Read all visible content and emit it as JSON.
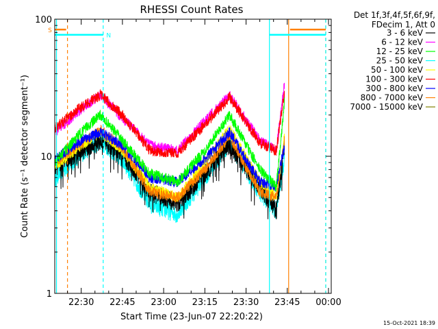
{
  "chart_data": {
    "type": "line",
    "title": "RHESSI Count Rates",
    "xlabel": "Start Time (23-Jun-07 22:20:22)",
    "ylabel": "Count Rate (s⁻¹ detector segment⁻¹)",
    "y_scale": "log",
    "ylim": [
      1,
      100
    ],
    "xlim": [
      "22:20:22",
      "00:01:00"
    ],
    "x_tick_labels": [
      "22:30",
      "22:45",
      "23:00",
      "23:15",
      "23:30",
      "23:45",
      "00:00"
    ],
    "y_tick_labels": [
      "1",
      "10",
      "100"
    ],
    "legend_header": [
      "Det 1f,3f,4f,5f,6f,9f,",
      "FDecim 1, Att 0"
    ],
    "legend_position": "right, outside plot",
    "series": [
      {
        "name": "3 - 6 keV",
        "color": "#000000",
        "x": [
          "22:20:22",
          "22:30",
          "22:37",
          "22:45",
          "22:55",
          "23:05",
          "23:15",
          "23:24",
          "23:35",
          "23:41",
          "23:44"
        ],
        "values": [
          8.5,
          11,
          13,
          10.5,
          5.5,
          4.5,
          7.5,
          12,
          6,
          4,
          12
        ]
      },
      {
        "name": "6 - 12 keV",
        "color": "#ff00ff",
        "x": [
          "22:20:22",
          "22:30",
          "22:37",
          "22:45",
          "22:55",
          "23:05",
          "23:15",
          "23:24",
          "23:35",
          "23:41",
          "23:44"
        ],
        "values": [
          15,
          22,
          28,
          19,
          12,
          11,
          18,
          28,
          13,
          11,
          35
        ]
      },
      {
        "name": "12 - 25 keV",
        "color": "#00ff00",
        "x": [
          "22:20:22",
          "22:30",
          "22:37",
          "22:45",
          "22:55",
          "23:05",
          "23:15",
          "23:24",
          "23:35",
          "23:41",
          "23:44"
        ],
        "values": [
          9,
          15,
          20,
          13,
          7.5,
          6.5,
          11,
          20,
          8,
          6,
          25
        ]
      },
      {
        "name": "25 - 50 keV",
        "color": "#00ffff",
        "x": [
          "22:20:22",
          "22:30",
          "22:37",
          "22:45",
          "22:55",
          "23:05",
          "23:15",
          "23:24",
          "23:35",
          "23:41",
          "23:44"
        ],
        "values": [
          7,
          10.5,
          13,
          9.5,
          4.5,
          3.8,
          7,
          12.5,
          5.5,
          4,
          10
        ]
      },
      {
        "name": "50 - 100 keV",
        "color": "#ffff00",
        "x": [
          "22:20:22",
          "22:30",
          "22:37",
          "22:45",
          "22:55",
          "23:05",
          "23:15",
          "23:24",
          "23:35",
          "23:41",
          "23:44"
        ],
        "values": [
          8.5,
          12,
          15,
          11,
          6,
          5,
          9,
          16,
          6.5,
          5,
          14
        ]
      },
      {
        "name": "100 - 300 keV",
        "color": "#ff0000",
        "x": [
          "22:20:22",
          "22:30",
          "22:37",
          "22:45",
          "22:55",
          "23:05",
          "23:15",
          "23:24",
          "23:35",
          "23:41",
          "23:44"
        ],
        "values": [
          16,
          23,
          28,
          20,
          11,
          10.5,
          17,
          27,
          12.5,
          11,
          30
        ]
      },
      {
        "name": "300 - 800 keV",
        "color": "#0000ff",
        "x": [
          "22:20:22",
          "22:30",
          "22:37",
          "22:45",
          "22:55",
          "23:05",
          "23:15",
          "23:24",
          "23:35",
          "23:41",
          "23:44"
        ],
        "values": [
          9.5,
          13,
          15,
          12,
          7,
          6.5,
          9.5,
          15,
          6.5,
          6,
          12
        ]
      },
      {
        "name": "800 - 7000 keV",
        "color": "#ff8000",
        "x": [
          "22:20:22",
          "22:30",
          "22:37",
          "22:45",
          "22:55",
          "23:05",
          "23:15",
          "23:24",
          "23:35",
          "23:41",
          "23:44"
        ],
        "values": [
          9,
          12.5,
          15.5,
          11.5,
          5.5,
          5,
          8,
          14,
          5.5,
          5,
          13
        ]
      },
      {
        "name": "7000 - 15000 keV",
        "color": "#808000",
        "x": [],
        "values": []
      }
    ],
    "annotations": [
      {
        "label": "S",
        "color": "#ff8000",
        "x_start": "22:20:22",
        "x_end": "22:24:30",
        "y": 84
      },
      {
        "label": "N",
        "color": "#00ffff",
        "x_start": "22:20:22",
        "x_end": "22:38:00",
        "y": 77
      },
      {
        "label": "",
        "color": "#00ffff",
        "x_start": "23:38:30",
        "x_end": "23:59:00",
        "y": 77
      },
      {
        "label": "",
        "color": "#ff8000",
        "x_start": "23:46:00",
        "x_end": "23:59:00",
        "y": 84
      }
    ],
    "vertical_lines": [
      {
        "x": "22:21:00",
        "color": "#00ffff",
        "style": "solid"
      },
      {
        "x": "22:25:00",
        "color": "#ff8000",
        "style": "dashed"
      },
      {
        "x": "22:38:00",
        "color": "#00ffff",
        "style": "dashed"
      },
      {
        "x": "23:38:30",
        "color": "#00ffff",
        "style": "solid"
      },
      {
        "x": "23:45:30",
        "color": "#ff8000",
        "style": "solid"
      },
      {
        "x": "23:59:00",
        "color": "#ff8000",
        "style": "dashed"
      },
      {
        "x": "23:59:00",
        "color": "#00ffff",
        "style": "dashed"
      }
    ],
    "grid": false
  },
  "footer": {
    "timestamp": "15-Oct-2021 18:39"
  }
}
